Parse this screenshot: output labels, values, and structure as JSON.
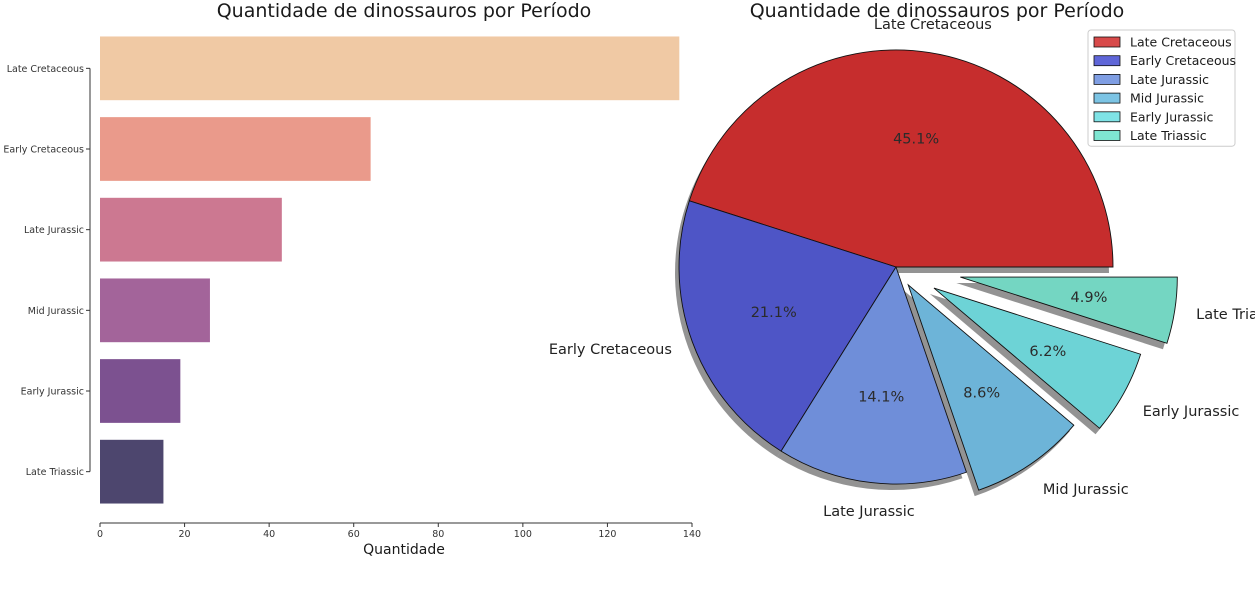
{
  "chart_data": [
    {
      "type": "bar",
      "orientation": "horizontal",
      "title": "Quantidade de dinossauros por Período",
      "xlabel": "Quantidade",
      "ylabel": "",
      "xlim": [
        0,
        140
      ],
      "xticks": [
        0,
        20,
        40,
        60,
        80,
        100,
        120,
        140
      ],
      "categories": [
        "Late Cretaceous",
        "Early Cretaceous",
        "Late Jurassic",
        "Mid Jurassic",
        "Early Jurassic",
        "Late Triassic"
      ],
      "values": [
        137,
        64,
        43,
        26,
        19,
        15
      ],
      "colors": [
        "#f0c9a4",
        "#ea9a8b",
        "#cc7891",
        "#a3649a",
        "#7c5190",
        "#4d466e"
      ],
      "grid": false
    },
    {
      "type": "pie",
      "title": "Quantidade de dinossauros por Período",
      "categories": [
        "Late Cretaceous",
        "Early Cretaceous",
        "Late Jurassic",
        "Mid Jurassic",
        "Early Jurassic",
        "Late Triassic"
      ],
      "values": [
        137,
        64,
        43,
        26,
        19,
        15
      ],
      "percent_labels": [
        "45.1%",
        "21.1%",
        "14.1%",
        "8.6%",
        "6.2%",
        "4.9%"
      ],
      "explode": [
        0,
        0,
        0,
        0.1,
        0.2,
        0.3
      ],
      "colors": [
        "#c62d2d",
        "#4e55c6",
        "#6f8ed9",
        "#6db4d8",
        "#6dd3d6",
        "#74d6c2"
      ],
      "legend": {
        "placement": "upper-right",
        "entries": [
          "Late Cretaceous",
          "Early Cretaceous",
          "Late Jurassic",
          "Mid Jurassic",
          "Early Jurassic",
          "Late Triassic"
        ],
        "colors": [
          "#d84a4a",
          "#5f66d8",
          "#7f9ee3",
          "#7cc4e4",
          "#7fe3e6",
          "#7fe6d2"
        ]
      }
    }
  ]
}
